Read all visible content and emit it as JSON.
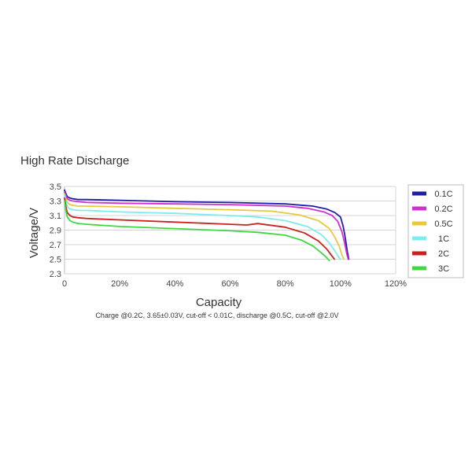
{
  "chart_data": {
    "type": "line",
    "title": "High Rate Discharge",
    "xlabel": "Capacity",
    "ylabel": "Voltage/V",
    "caption": "Charge @0.2C, 3.65±0.03V,  cut-off < 0.01C, discharge @0.5C, cut-off @2.0V",
    "xlim": [
      0,
      120
    ],
    "ylim": [
      2.3,
      3.5
    ],
    "x_ticks": [
      0,
      20,
      40,
      60,
      80,
      100,
      120
    ],
    "x_tick_labels": [
      "0",
      "20%",
      "40%",
      "60%",
      "80%",
      "100%",
      "120%"
    ],
    "y_ticks": [
      2.3,
      2.5,
      2.7,
      2.9,
      3.1,
      3.3,
      3.5
    ],
    "y_tick_labels": [
      "2.3",
      "2.5",
      "2.7",
      "2.9",
      "3.1",
      "3.3",
      "3.5"
    ],
    "grid": true,
    "legend_position": "right",
    "series": [
      {
        "name": "0.1C",
        "color": "#1f1fa8",
        "x": [
          0,
          0.5,
          1,
          2,
          3,
          5,
          8,
          20,
          40,
          60,
          80,
          90,
          95,
          98,
          100,
          101,
          101.8,
          102.5,
          103
        ],
        "y": [
          3.45,
          3.4,
          3.36,
          3.34,
          3.33,
          3.32,
          3.32,
          3.31,
          3.29,
          3.28,
          3.26,
          3.23,
          3.19,
          3.14,
          3.08,
          2.95,
          2.78,
          2.6,
          2.5
        ]
      },
      {
        "name": "0.2C",
        "color": "#d12fd1",
        "x": [
          0,
          0.5,
          1,
          2,
          3,
          5,
          8,
          20,
          40,
          60,
          80,
          88,
          94,
          97,
          99,
          100.5,
          101.5,
          102.3,
          102.8
        ],
        "y": [
          3.42,
          3.37,
          3.33,
          3.31,
          3.3,
          3.29,
          3.28,
          3.27,
          3.26,
          3.25,
          3.23,
          3.2,
          3.15,
          3.1,
          3.02,
          2.88,
          2.72,
          2.57,
          2.5
        ]
      },
      {
        "name": "0.5C",
        "color": "#e9c93a",
        "x": [
          0,
          0.5,
          1,
          2,
          3,
          5,
          8,
          20,
          40,
          60,
          75,
          85,
          92,
          96,
          98,
          99.5,
          100.5,
          101.2
        ],
        "y": [
          3.4,
          3.33,
          3.28,
          3.25,
          3.24,
          3.23,
          3.23,
          3.22,
          3.2,
          3.18,
          3.16,
          3.11,
          3.03,
          2.92,
          2.8,
          2.68,
          2.56,
          2.5
        ]
      },
      {
        "name": "1C",
        "color": "#7cecef",
        "x": [
          0,
          0.5,
          1,
          2,
          3,
          5,
          8,
          20,
          40,
          60,
          70,
          80,
          88,
          93,
          96,
          98,
          99.3,
          100
        ],
        "y": [
          3.38,
          3.28,
          3.22,
          3.19,
          3.18,
          3.17,
          3.17,
          3.15,
          3.13,
          3.1,
          3.08,
          3.03,
          2.95,
          2.84,
          2.72,
          2.61,
          2.53,
          2.5
        ]
      },
      {
        "name": "2C",
        "color": "#cc1f1f",
        "x": [
          0,
          0.5,
          1,
          2,
          3,
          5,
          8,
          20,
          40,
          60,
          66,
          70,
          80,
          87,
          92,
          95,
          96.8,
          97.8
        ],
        "y": [
          3.34,
          3.22,
          3.14,
          3.1,
          3.08,
          3.07,
          3.06,
          3.04,
          3.01,
          2.98,
          2.97,
          2.99,
          2.94,
          2.86,
          2.75,
          2.64,
          2.55,
          2.5
        ]
      },
      {
        "name": "3C",
        "color": "#3fd93f",
        "x": [
          0,
          0.5,
          1,
          2,
          3,
          5,
          8,
          20,
          40,
          60,
          70,
          80,
          86,
          90,
          93,
          95,
          96
        ],
        "y": [
          3.3,
          3.16,
          3.08,
          3.03,
          3.01,
          2.99,
          2.98,
          2.95,
          2.92,
          2.89,
          2.87,
          2.83,
          2.76,
          2.68,
          2.59,
          2.52,
          2.48
        ]
      }
    ]
  }
}
